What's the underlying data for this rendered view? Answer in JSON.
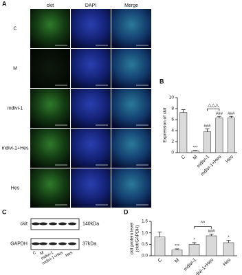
{
  "panels": {
    "a": {
      "label": "A",
      "columns": [
        "ckit",
        "DAPI",
        "Merge"
      ],
      "rows": [
        "C",
        "M",
        "mdivi-1",
        "mdivi-1+Hes",
        "Hes"
      ]
    },
    "c": {
      "label": "C",
      "bands": [
        "ckit",
        "GAPDH"
      ],
      "sizes": [
        "140kDa",
        "37kDa"
      ],
      "lanes": [
        "C",
        "M",
        "mdivi-1",
        "mdivi-1+Hes",
        "Hes"
      ]
    }
  },
  "chart_data": [
    {
      "type": "bar",
      "panel": "B",
      "ylabel": [
        "Expression of ckit"
      ],
      "categories": [
        "C",
        "M",
        "mdivi-1",
        "mdivi-1+Hes",
        "Hes"
      ],
      "values": [
        7.3,
        0.3,
        3.8,
        6.3,
        6.3
      ],
      "errors": [
        0.5,
        0.1,
        0.5,
        0.3,
        0.3
      ],
      "annotations": [
        null,
        "***",
        "###",
        "###",
        "###"
      ],
      "bracket": "△△△",
      "color": "#d9d9d9",
      "ylim": [
        0,
        10
      ],
      "yticks": [
        0,
        2,
        4,
        6,
        8,
        10
      ]
    },
    {
      "type": "bar",
      "panel": "D",
      "ylabel": [
        "ckit protein level",
        "(ckit/GAPDH)"
      ],
      "categories": [
        "C",
        "M",
        "mdivi-1",
        "mdivi-1+Hes",
        "Hes"
      ],
      "values": [
        0.82,
        0.25,
        0.5,
        0.87,
        0.57
      ],
      "errors": [
        0.22,
        0.05,
        0.07,
        0.07,
        0.1
      ],
      "annotations": [
        null,
        "***",
        "*",
        "###",
        "*"
      ],
      "bracket": "^^",
      "color": "#d9d9d9",
      "ylim": [
        0,
        1.5
      ],
      "yticks": [
        {
          "value": 0,
          "label": "0.0"
        },
        0.5,
        {
          "value": 1,
          "label": "1.0"
        },
        1.5
      ]
    }
  ]
}
